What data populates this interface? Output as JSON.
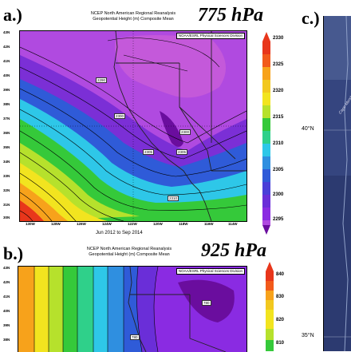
{
  "panels": {
    "a": {
      "label": "a.)",
      "title_line1": "NCEP North American Regional Reanalysis",
      "title_line2": "Geopotential Height (m) Composite Mean",
      "level": "775 hPa",
      "credit": "NOAA/ESRL Physical Sciences Division",
      "date_range": "Jun 2012 to Sep 2014",
      "lat_ticks": [
        "43N",
        "42N",
        "41N",
        "40N",
        "39N",
        "38N",
        "37N",
        "36N",
        "35N",
        "34N",
        "33N",
        "32N",
        "31N",
        "30N"
      ],
      "lon_ticks": [
        "130W",
        "128W",
        "126W",
        "124W",
        "122W",
        "120W",
        "118W",
        "116W",
        "114W"
      ],
      "colorbar_labels": [
        "2330",
        "2325",
        "2320",
        "2315",
        "2310",
        "2305",
        "2300",
        "2295"
      ],
      "contour_labels": [
        "2290",
        "2300",
        "2300",
        "2305",
        "2305",
        "2310"
      ]
    },
    "b": {
      "label": "b.)",
      "title_line1": "NCEP North American Regional Reanalysis",
      "title_line2": "Geopotential Height (m) Composite Mean",
      "level": "925 hPa",
      "credit": "NOAA/ESRL Physical Sciences Division",
      "lat_ticks": [
        "43N",
        "42N",
        "41N",
        "40N",
        "39N",
        "38N"
      ],
      "colorbar_labels": [
        "840",
        "830",
        "820",
        "810"
      ],
      "contour_labels": [
        "780",
        "780"
      ]
    },
    "c": {
      "label": "c.)",
      "lat_labels": [
        "40°N",
        "35°N"
      ],
      "place_label": "Cape Mendo"
    }
  },
  "colors": {
    "purple_dark": "#6a0d9e",
    "purple": "#8a2be2",
    "violet": "#b04ae0",
    "magenta": "#c85cd8",
    "blue": "#2f5bd8",
    "cyan": "#2ec7e8",
    "green": "#35c93a",
    "yellow_green": "#b6e12c",
    "yellow": "#f2e41f",
    "orange": "#f7a21b",
    "red": "#e8361b",
    "satellite": "#33427e"
  }
}
